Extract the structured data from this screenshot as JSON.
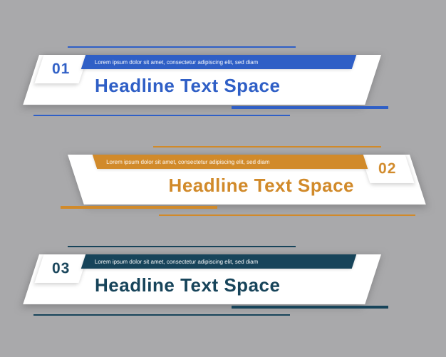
{
  "background_color": "#a9a9ab",
  "banners": [
    {
      "number": "01",
      "subtitle": "Lorem ipsum dolor sit amet, consectetur adipiscing elit, sed diam ",
      "headline": "Headline Text Space",
      "variant": "left",
      "color_primary": "#2f5fc6",
      "color_text": "#2f5fc6"
    },
    {
      "number": "02",
      "subtitle": "Lorem ipsum dolor sit amet, consectetur adipiscing elit, sed diam ",
      "headline": "Headline Text Space",
      "variant": "right",
      "color_primary": "#d18a2a",
      "color_text": "#d18a2a"
    },
    {
      "number": "03",
      "subtitle": "Lorem ipsum dolor sit amet, consectetur adipiscing elit, sed diam ",
      "headline": "Headline Text Space",
      "variant": "left",
      "color_primary": "#17445a",
      "color_text": "#17445a"
    }
  ],
  "typography": {
    "headline_fontsize": 26,
    "headline_weight": 800,
    "number_fontsize": 21,
    "subtitle_fontsize": 8
  }
}
